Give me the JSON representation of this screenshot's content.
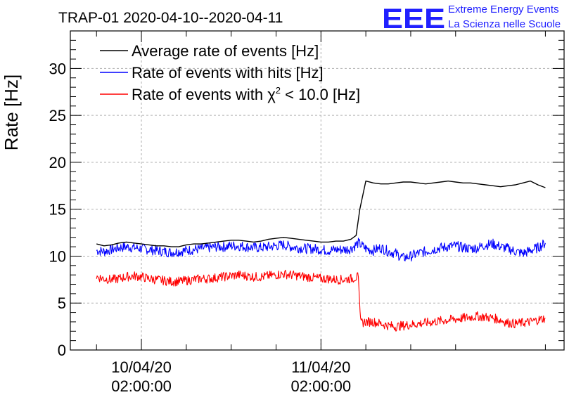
{
  "header": {
    "title": "TRAP-01 2020-04-10--2020-04-11",
    "logo_letters": "EEE",
    "logo_line1": "Extreme Energy Events",
    "logo_line2": "La Scienza nelle Scuole"
  },
  "chart_data": {
    "type": "line",
    "title": "TRAP-01 2020-04-10--2020-04-11",
    "ylabel": "Rate [Hz]",
    "xlabel": "",
    "ylim": [
      0,
      34
    ],
    "yticks": [
      0,
      5,
      10,
      15,
      20,
      25,
      30
    ],
    "xlim_hours": [
      -9.5,
      56.5
    ],
    "xticks": [
      {
        "hour": 0,
        "line1": "10/04/20",
        "line2": "02:00:00"
      },
      {
        "hour": 24,
        "line1": "11/04/20",
        "line2": "02:00:00"
      }
    ],
    "grid": true,
    "legend_position": "top-left",
    "legend": [
      {
        "series": "avg",
        "text": "Average rate of events [Hz]",
        "color": "#000000"
      },
      {
        "series": "hits",
        "text": "Rate of events with hits [Hz]",
        "color": "#0000ff"
      },
      {
        "series": "chi2",
        "text_main": "Rate of events with ",
        "chi": "χ",
        "sup": "2",
        "text_tail": " < 10.0 [Hz]",
        "color": "#ff0000"
      }
    ],
    "series": [
      {
        "name": "Average rate of events [Hz]",
        "color": "#000000",
        "x": [
          -6,
          -5,
          -4,
          -3,
          -2,
          -1,
          0,
          1,
          2,
          3,
          4,
          5,
          6,
          7,
          8,
          9,
          10,
          11,
          12,
          13,
          14,
          15,
          16,
          17,
          18,
          19,
          20,
          21,
          22,
          23,
          24,
          25,
          26,
          27,
          28,
          28.7,
          29.2,
          30,
          31,
          32,
          33,
          34,
          35,
          36,
          37,
          38,
          39,
          40,
          41,
          42,
          43,
          44,
          45,
          46,
          47,
          48,
          49,
          50,
          51,
          52,
          53,
          54
        ],
        "y": [
          11.3,
          11.1,
          11.2,
          11.4,
          11.5,
          11.4,
          11.3,
          11.2,
          11.1,
          11.1,
          11.0,
          11.0,
          11.2,
          11.3,
          11.3,
          11.4,
          11.5,
          11.6,
          11.7,
          11.7,
          11.6,
          11.5,
          11.6,
          11.8,
          11.9,
          12.0,
          11.9,
          11.8,
          11.7,
          11.6,
          11.5,
          11.5,
          11.6,
          11.6,
          11.8,
          12.2,
          15.0,
          18.0,
          17.8,
          17.7,
          17.7,
          17.8,
          17.9,
          17.9,
          17.8,
          17.7,
          17.8,
          17.9,
          18.0,
          17.9,
          17.8,
          17.8,
          17.7,
          17.6,
          17.5,
          17.4,
          17.5,
          17.6,
          17.8,
          18.0,
          17.6,
          17.3
        ]
      },
      {
        "name": "Rate of events with hits [Hz]",
        "color": "#0000ff",
        "x": [
          -6,
          -5,
          -4,
          -3,
          -2,
          -1,
          0,
          1,
          2,
          3,
          4,
          5,
          6,
          7,
          8,
          9,
          10,
          11,
          12,
          13,
          14,
          15,
          16,
          17,
          18,
          19,
          20,
          21,
          22,
          23,
          24,
          25,
          26,
          27,
          28,
          29,
          30,
          31,
          32,
          33,
          34,
          35,
          36,
          37,
          38,
          39,
          40,
          41,
          42,
          43,
          44,
          45,
          46,
          47,
          48,
          49,
          50,
          51,
          52,
          53,
          54
        ],
        "y": [
          10.6,
          10.5,
          10.7,
          10.9,
          11.0,
          10.9,
          10.8,
          10.7,
          10.6,
          10.5,
          10.4,
          10.5,
          10.6,
          10.7,
          10.8,
          10.9,
          11.0,
          11.0,
          11.1,
          11.1,
          11.0,
          10.9,
          10.9,
          11.0,
          11.1,
          11.2,
          11.0,
          10.9,
          10.8,
          10.8,
          10.7,
          10.6,
          10.7,
          10.7,
          10.8,
          11.4,
          10.8,
          10.6,
          10.9,
          10.5,
          10.3,
          9.8,
          10.0,
          10.3,
          10.5,
          10.7,
          10.9,
          11.0,
          11.1,
          10.9,
          10.8,
          10.9,
          11.2,
          11.3,
          11.0,
          10.8,
          10.5,
          10.3,
          10.6,
          10.9,
          11.4
        ]
      },
      {
        "name": "Rate of events with χ2 < 10.0 [Hz]",
        "color": "#ff0000",
        "x": [
          -6,
          -5,
          -4,
          -3,
          -2,
          -1,
          0,
          1,
          2,
          3,
          4,
          5,
          6,
          7,
          8,
          9,
          10,
          11,
          12,
          13,
          14,
          15,
          16,
          17,
          18,
          19,
          20,
          21,
          22,
          23,
          24,
          25,
          26,
          27,
          28,
          29,
          29.3,
          30,
          31,
          32,
          33,
          34,
          35,
          36,
          37,
          38,
          39,
          40,
          41,
          42,
          43,
          44,
          45,
          46,
          47,
          48,
          49,
          50,
          51,
          52,
          53,
          54
        ],
        "y": [
          7.8,
          7.6,
          7.5,
          7.6,
          7.8,
          7.9,
          7.8,
          7.6,
          7.5,
          7.4,
          7.3,
          7.3,
          7.4,
          7.5,
          7.6,
          7.6,
          7.7,
          7.8,
          7.9,
          8.0,
          7.9,
          7.8,
          7.8,
          7.9,
          8.0,
          8.1,
          8.0,
          7.9,
          7.8,
          7.7,
          7.6,
          7.6,
          7.5,
          7.5,
          7.6,
          7.8,
          2.9,
          3.0,
          3.0,
          2.8,
          2.6,
          2.5,
          2.6,
          2.7,
          2.8,
          2.9,
          3.0,
          3.1,
          3.2,
          3.3,
          3.4,
          3.5,
          3.6,
          3.5,
          3.4,
          3.2,
          2.9,
          2.8,
          2.9,
          3.0,
          3.2,
          3.4
        ]
      }
    ]
  }
}
